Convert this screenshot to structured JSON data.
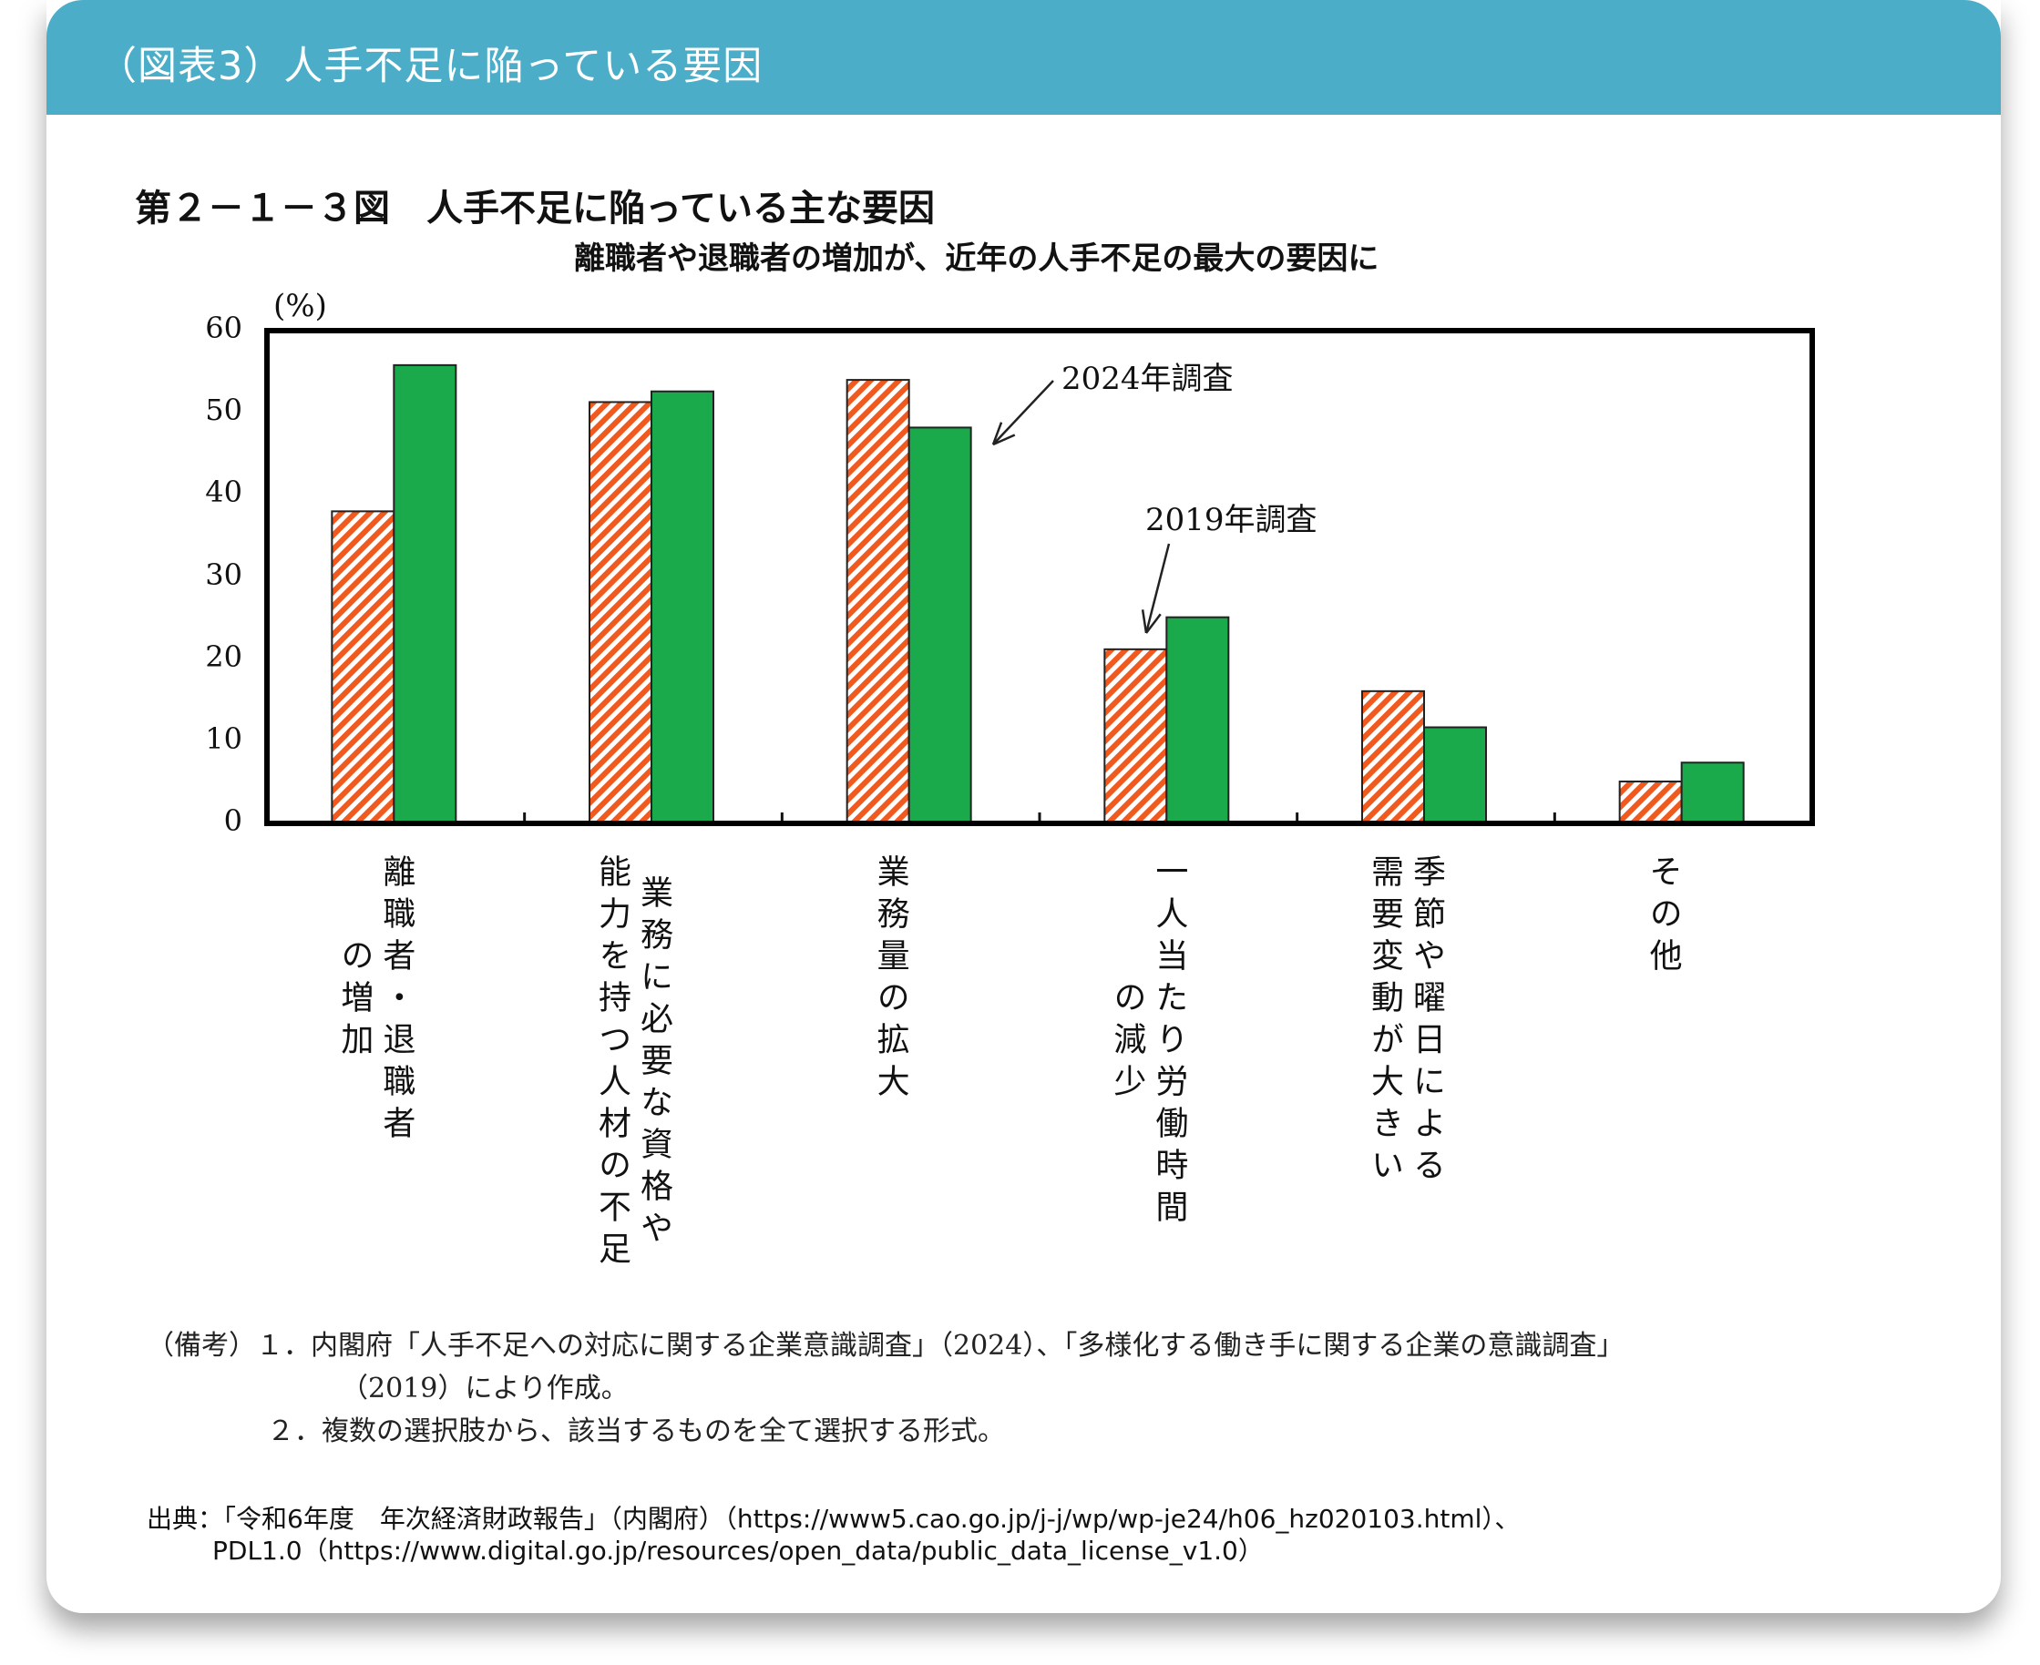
{
  "header": {
    "title": "（図表3）人手不足に陥っている要因"
  },
  "figure": {
    "title": "第２－１－３図　人手不足に陥っている主な要因",
    "subtitle": "離職者や退職者の増加が、近年の人手不足の最大の要因に"
  },
  "chart_data": {
    "type": "bar",
    "ylabel": "(%)",
    "ylim": [
      0,
      60
    ],
    "yticks": [
      "0",
      "10",
      "20",
      "30",
      "40",
      "50",
      "60"
    ],
    "categories": [
      [
        "離職者・退職者",
        "の増加"
      ],
      [
        "業務に必要な資格や",
        "能力を持つ人材の不足"
      ],
      [
        "業務量の拡大"
      ],
      [
        "一人当たり労働時間",
        "の減少"
      ],
      [
        "季節や曜日による",
        "需要変動が大きい"
      ],
      [
        "その他"
      ]
    ],
    "series": [
      {
        "name": "2019年調査",
        "values": [
          38,
          51.3,
          54,
          21.2,
          16.1,
          5.1
        ],
        "color": "#F05A1E",
        "pattern": "hatched"
      },
      {
        "name": "2024年調査",
        "values": [
          55.8,
          52.6,
          48.2,
          25.1,
          11.7,
          7.4
        ],
        "color": "#1AAA4B",
        "pattern": "solid"
      }
    ],
    "annotations": {
      "s2024": "2024年調査",
      "s2019": "2019年調査"
    },
    "legend": "annotations-with-arrows",
    "grid": false
  },
  "notes": {
    "line1": "（備考）１．内閣府「人手不足への対応に関する企業意識調査」（2024）、「多様化する働き手に関する企業の意識調査」",
    "line2": "（2019）により作成。",
    "line3": "２．複数の選択肢から、該当するものを全て選択する形式。"
  },
  "source": {
    "line1": "出典：「令和6年度　年次経済財政報告」（内閣府）（https://www5.cao.go.jp/j-j/wp/wp-je24/h06_hz020103.html）、",
    "line2": "PDL1.0（https://www.digital.go.jp/resources/open_data/public_data_license_v1.0）"
  }
}
